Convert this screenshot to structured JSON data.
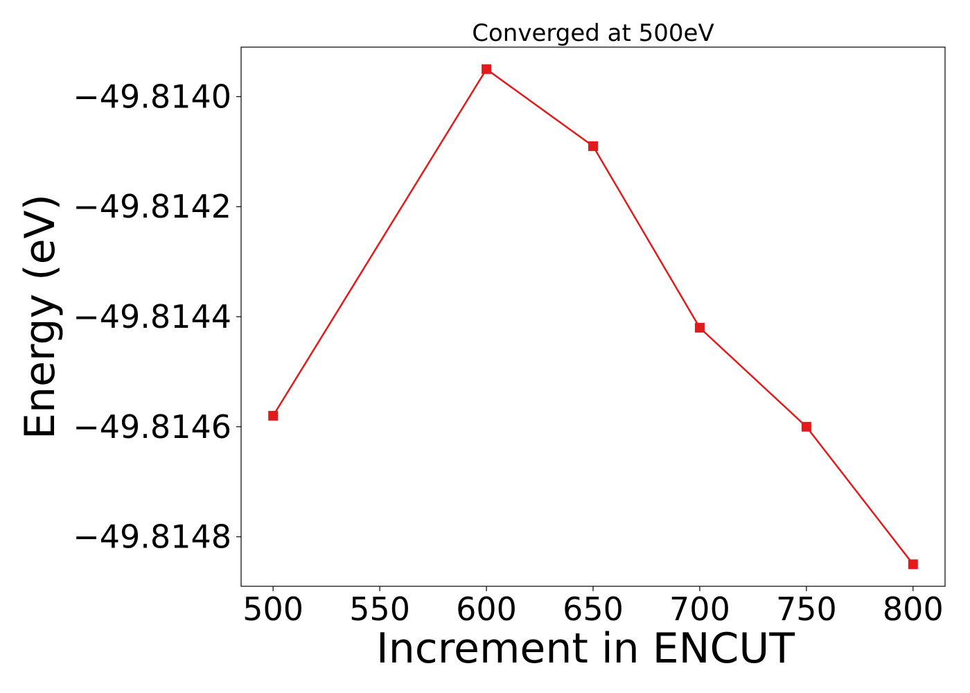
{
  "chart_data": {
    "type": "line",
    "title": "Converged at 500eV",
    "xlabel": "Increment in ENCUT",
    "ylabel": "Energy (eV)",
    "x": [
      500,
      600,
      650,
      700,
      750,
      800
    ],
    "series": [
      {
        "color": "#e31a1c",
        "marker": "square",
        "values": [
          -49.81458,
          -49.81395,
          -49.81409,
          -49.81442,
          -49.8146,
          -49.81485
        ]
      }
    ],
    "xlim": [
      485,
      815
    ],
    "ylim": [
      -49.81489,
      -49.81391
    ],
    "xticks": [
      500,
      550,
      600,
      650,
      700,
      750,
      800
    ],
    "xtick_labels": [
      "500",
      "550",
      "600",
      "650",
      "700",
      "750",
      "800"
    ],
    "yticks": [
      -49.814,
      -49.8142,
      -49.8144,
      -49.8146,
      -49.8148
    ],
    "ytick_labels": [
      "−49.8140",
      "−49.8142",
      "−49.8144",
      "−49.8146",
      "−49.8148"
    ],
    "grid": false,
    "legend": false
  }
}
